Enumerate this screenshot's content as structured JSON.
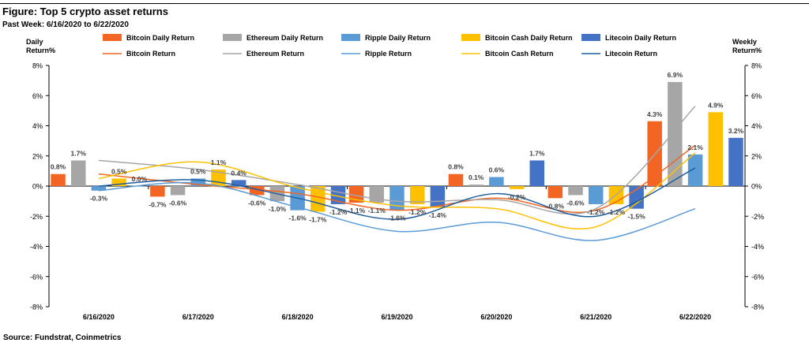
{
  "header": {
    "title": "Figure: Top 5 crypto asset returns",
    "subtitle": "Past Week: 6/16/2020 to 6/22/2020"
  },
  "footer": {
    "source": "Source: Fundstrat, Coinmetrics"
  },
  "chart_data": {
    "type": "bar",
    "categories": [
      "6/16/2020",
      "6/17/2020",
      "6/18/2020",
      "6/19/2020",
      "6/20/2020",
      "6/21/2020",
      "6/22/2020"
    ],
    "ylabel_left": [
      "Daily",
      "Return%"
    ],
    "ylabel_right": [
      "Weekly",
      "Return%"
    ],
    "ylim": [
      -8,
      8
    ],
    "yticks": [
      -8,
      -6,
      -4,
      -2,
      0,
      2,
      4,
      6,
      8
    ],
    "ytick_labels": [
      "-8%",
      "-6%",
      "-4%",
      "-2%",
      "0%",
      "2%",
      "4%",
      "6%",
      "8%"
    ],
    "grid": false,
    "legend_position": "top",
    "bar_series": [
      {
        "name": "Bitcoin Daily Return",
        "color": "#F26522",
        "values": [
          0.8,
          -0.7,
          -0.6,
          -1.1,
          0.8,
          -0.8,
          4.3
        ],
        "labels": [
          "0.8%",
          "-0.7%",
          "-0.6%",
          "-1.1%",
          "0.8%",
          "-0.8%",
          "4.3%"
        ]
      },
      {
        "name": "Ethereum Daily Return",
        "color": "#A6A6A6",
        "values": [
          1.7,
          -0.6,
          -1.0,
          -1.1,
          0.1,
          -0.6,
          6.9
        ],
        "labels": [
          "1.7%",
          "-0.6%",
          "-1.0%",
          "-1.1%",
          "0.1%",
          "-0.6%",
          "6.9%"
        ]
      },
      {
        "name": "Ripple Daily Return",
        "color": "#5B9BD5",
        "values": [
          -0.3,
          0.5,
          -1.6,
          -1.6,
          0.6,
          -1.2,
          2.1
        ],
        "labels": [
          "-0.3%",
          "0.5%",
          "-1.6%",
          "-1.6%",
          "0.6%",
          "-1.2%",
          "2.1%"
        ]
      },
      {
        "name": "Bitcoin Cash Daily Return",
        "color": "#FFC000",
        "values": [
          0.5,
          1.1,
          -1.7,
          -1.2,
          -0.2,
          -1.2,
          4.9
        ],
        "labels": [
          "0.5%",
          "1.1%",
          "-1.7%",
          "-1.2%",
          "-0.2%",
          "-1.2%",
          "4.9%"
        ]
      },
      {
        "name": "Litecoin Daily Return",
        "color": "#4472C4",
        "values": [
          0.0,
          0.4,
          -1.2,
          -1.4,
          1.7,
          -1.5,
          3.2
        ],
        "labels": [
          "0.0%",
          "0.4%",
          "-1.2%",
          "-1.4%",
          "1.7%",
          "-1.5%",
          "3.2%"
        ]
      }
    ],
    "line_series": [
      {
        "name": "Bitcoin Return",
        "color": "#F26522",
        "values": [
          0.8,
          0.1,
          -0.5,
          -1.6,
          -0.8,
          -1.6,
          2.7
        ]
      },
      {
        "name": "Ethereum Return",
        "color": "#A6A6A6",
        "values": [
          1.7,
          1.1,
          0.1,
          -1.0,
          -0.9,
          -1.5,
          5.3
        ]
      },
      {
        "name": "Ripple Return",
        "color": "#5B9BD5",
        "values": [
          -0.3,
          0.2,
          -1.4,
          -3.0,
          -2.4,
          -3.6,
          -1.5
        ]
      },
      {
        "name": "Bitcoin Cash Return",
        "color": "#FFC000",
        "values": [
          0.5,
          1.6,
          -0.1,
          -1.3,
          -1.5,
          -2.7,
          2.2
        ]
      },
      {
        "name": "Litecoin Return",
        "color": "#1F5E9E",
        "values": [
          0.0,
          0.4,
          -0.8,
          -2.2,
          -0.5,
          -2.0,
          1.2
        ]
      }
    ]
  }
}
